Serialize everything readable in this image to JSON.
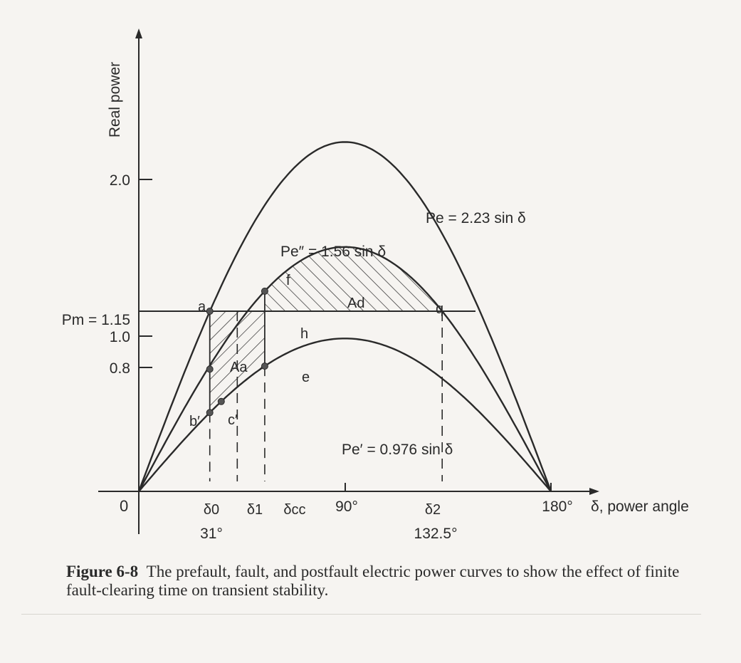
{
  "figure": {
    "y_axis_label": "Real power",
    "x_axis_label": "δ, power angle",
    "origin_label": "0",
    "y_ticks": [
      {
        "value": 2.0,
        "label": "2.0"
      },
      {
        "value": 1.0,
        "label": "1.0"
      },
      {
        "value": 0.8,
        "label": "0.8"
      }
    ],
    "pm_label": "Pm = 1.15",
    "x_ticks": [
      {
        "value": 31,
        "label": "δ0",
        "sublabel": "31°"
      },
      {
        "value": 43,
        "label": "δ1",
        "sublabel": ""
      },
      {
        "value": 55,
        "label": "δcc",
        "sublabel": ""
      },
      {
        "value": 90,
        "label": "90°",
        "sublabel": ""
      },
      {
        "value": 132.5,
        "label": "δ2",
        "sublabel": "132.5°"
      },
      {
        "value": 180,
        "label": "180°",
        "sublabel": ""
      }
    ],
    "curve_labels": {
      "prefault": "Pe = 2.23 sin δ",
      "postfault": "Pe″ = 1.56 sin δ",
      "fault": "Pe′ = 0.976 sin δ"
    },
    "points": {
      "a": "a",
      "b": "b′",
      "c": "c′",
      "e": "e",
      "f": "f",
      "h": "h",
      "q": "q"
    },
    "areas": {
      "accel": "Aa",
      "decel": "Ad"
    }
  },
  "chart_data": {
    "type": "line",
    "xlabel": "δ, power angle",
    "ylabel": "Real power",
    "xlim": [
      0,
      180
    ],
    "ylim": [
      0,
      2.5
    ],
    "series": [
      {
        "name": "Pe = 2.23 sin δ",
        "amplitude": 2.23
      },
      {
        "name": "Pe″ = 1.56 sin δ",
        "amplitude": 1.56
      },
      {
        "name": "Pe′ = 0.976 sin δ",
        "amplitude": 0.976
      }
    ],
    "pm": 1.15,
    "delta0": 31,
    "delta2": 132.5
  },
  "caption": {
    "label": "Figure 6-8",
    "text": "The prefault, fault, and postfault electric power curves to show the effect of finite fault-clearing time on transient stability."
  }
}
